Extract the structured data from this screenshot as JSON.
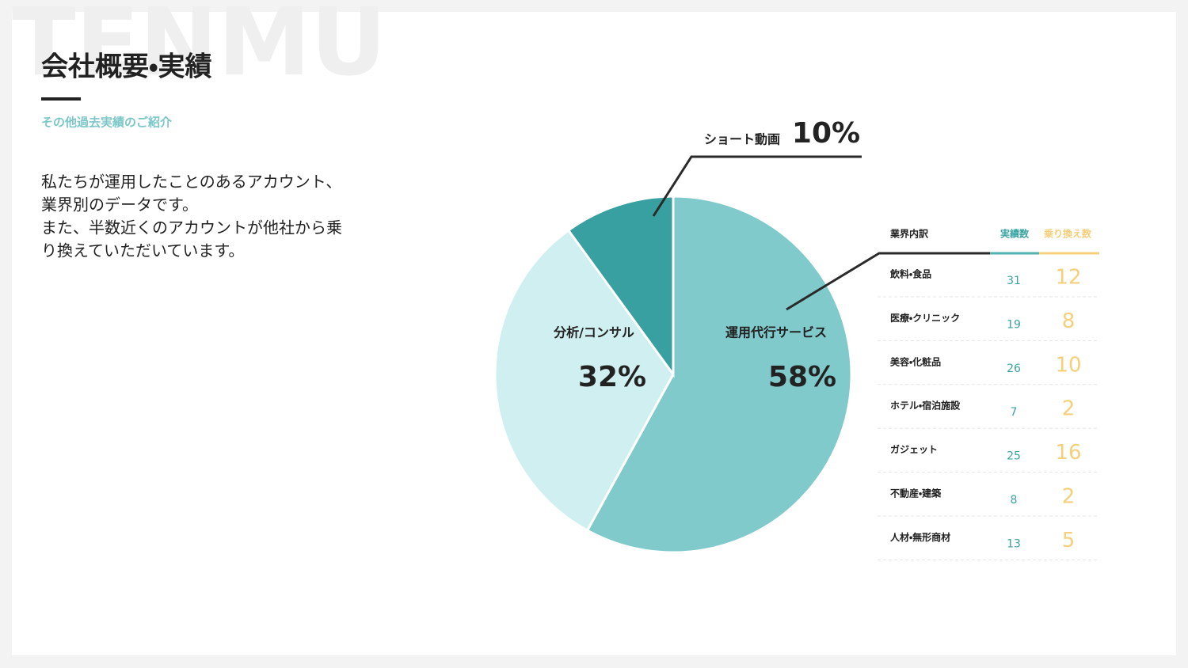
{
  "header": {
    "watermark": "TENMU",
    "title": "会社概要・実績",
    "subtitle": "その他過去実績のご紹介"
  },
  "description": [
    "私たちが運用したことのあるアカウント、",
    "業界別のデータです。",
    "また、半数近くのアカウントが他社から乗",
    "り換えていただいています。"
  ],
  "chart_data": {
    "type": "pie",
    "categories": [
      "運用代行サービス",
      "分析/コンサル",
      "ショート動画"
    ],
    "values": [
      58,
      32,
      10
    ],
    "value_labels": [
      "58%",
      "32%",
      "10%"
    ],
    "colors": [
      "#80cacb",
      "#cfeff0",
      "#38a0a0"
    ]
  },
  "table": {
    "header": [
      "業界内訳",
      "実績数",
      "乗り換え数"
    ],
    "rows": [
      [
        "飲料・食品",
        31,
        12
      ],
      [
        "医療・クリニック",
        19,
        8
      ],
      [
        "美容・化粧品",
        26,
        10
      ],
      [
        "ホテル・宿泊施設",
        7,
        2
      ],
      [
        "ガジェット",
        25,
        16
      ],
      [
        "不動産・建築",
        8,
        2
      ],
      [
        "人材・無形商材",
        13,
        5
      ]
    ]
  }
}
